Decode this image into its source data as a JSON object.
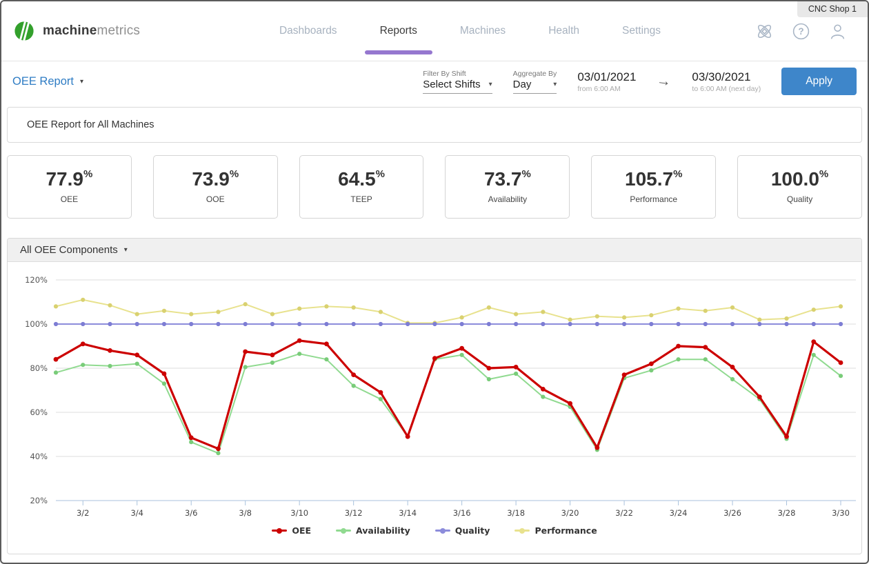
{
  "window": {
    "shop_badge": "CNC Shop 1"
  },
  "header": {
    "brand_bold": "machine",
    "brand_light": "metrics",
    "nav": [
      {
        "label": "Dashboards"
      },
      {
        "label": "Reports"
      },
      {
        "label": "Machines"
      },
      {
        "label": "Health"
      },
      {
        "label": "Settings"
      }
    ]
  },
  "filter_bar": {
    "report_selector": "OEE Report",
    "shift_filter": {
      "label": "Filter By Shift",
      "value": "Select Shifts"
    },
    "aggregate": {
      "label": "Aggregate By",
      "value": "Day"
    },
    "date_start": {
      "date": "03/01/2021",
      "sub": "from 6:00 AM"
    },
    "date_end": {
      "date": "03/30/2021",
      "sub": "to 6:00 AM (next day)"
    },
    "apply_label": "Apply"
  },
  "report_title": "OEE Report for All Machines",
  "kpis": [
    {
      "value": "77.9",
      "unit": "%",
      "label": "OEE"
    },
    {
      "value": "73.9",
      "unit": "%",
      "label": "OOE"
    },
    {
      "value": "64.5",
      "unit": "%",
      "label": "TEEP"
    },
    {
      "value": "73.7",
      "unit": "%",
      "label": "Availability"
    },
    {
      "value": "105.7",
      "unit": "%",
      "label": "Performance"
    },
    {
      "value": "100.0",
      "unit": "%",
      "label": "Quality"
    }
  ],
  "chart_section": {
    "title": "All OEE Components"
  },
  "chart_data": {
    "type": "line",
    "x": [
      "3/1",
      "3/2",
      "3/3",
      "3/4",
      "3/5",
      "3/6",
      "3/7",
      "3/8",
      "3/9",
      "3/10",
      "3/11",
      "3/12",
      "3/13",
      "3/14",
      "3/15",
      "3/16",
      "3/17",
      "3/18",
      "3/19",
      "3/20",
      "3/21",
      "3/22",
      "3/23",
      "3/24",
      "3/25",
      "3/26",
      "3/27",
      "3/28",
      "3/29",
      "3/30"
    ],
    "x_tick_labels": [
      "3/2",
      "3/4",
      "3/6",
      "3/8",
      "3/10",
      "3/12",
      "3/14",
      "3/16",
      "3/18",
      "3/20",
      "3/22",
      "3/24",
      "3/26",
      "3/28",
      "3/30"
    ],
    "y_tick_labels": [
      "20%",
      "40%",
      "60%",
      "80%",
      "100%",
      "120%"
    ],
    "ylim": [
      20,
      120
    ],
    "grid": true,
    "legend_position": "bottom",
    "series": [
      {
        "name": "OEE",
        "color": "#cc0000",
        "marker_color": "#cc0000",
        "values": [
          84,
          91,
          88,
          86,
          77.5,
          48.5,
          43.5,
          87.5,
          86,
          92.5,
          91,
          77,
          69,
          49,
          84.5,
          89,
          80,
          80.5,
          70.5,
          64,
          44,
          77,
          82,
          90,
          89.5,
          80.5,
          67,
          49,
          92,
          82.5
        ]
      },
      {
        "name": "Availability",
        "color": "#90da90",
        "marker_color": "#79cc79",
        "values": [
          78,
          81.5,
          81,
          82,
          73,
          46.5,
          41.5,
          80.5,
          82.5,
          86.5,
          84,
          72,
          66,
          49,
          84,
          86,
          75,
          77.5,
          67,
          62.5,
          43,
          75.5,
          79,
          84,
          84,
          75,
          66,
          48,
          86,
          76.5
        ]
      },
      {
        "name": "Quality",
        "color": "#8c8cdb",
        "marker_color": "#7d7dd4",
        "values": [
          100,
          100,
          100,
          100,
          100,
          100,
          100,
          100,
          100,
          100,
          100,
          100,
          100,
          100,
          100,
          100,
          100,
          100,
          100,
          100,
          100,
          100,
          100,
          100,
          100,
          100,
          100,
          100,
          100,
          100
        ]
      },
      {
        "name": "Performance",
        "color": "#e8e28e",
        "marker_color": "#d9d170",
        "values": [
          108,
          111,
          108.5,
          104.5,
          106,
          104.5,
          105.5,
          109,
          104.5,
          107,
          108,
          107.5,
          105.5,
          100.5,
          100.5,
          103,
          107.5,
          104.5,
          105.5,
          102,
          103.5,
          103,
          104,
          107,
          106,
          107.5,
          102,
          102.5,
          106.5,
          108
        ]
      }
    ]
  }
}
